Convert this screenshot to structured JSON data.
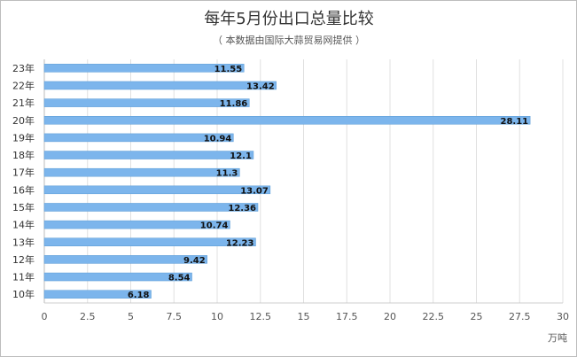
{
  "chart_data": {
    "type": "bar",
    "orientation": "horizontal",
    "title": "每年5月份出口总量比较",
    "subtitle": "（ 本数据由国际大蒜贸易网提供 ）",
    "unit_label": "万吨",
    "categories": [
      "23年",
      "22年",
      "21年",
      "20年",
      "19年",
      "18年",
      "17年",
      "16年",
      "15年",
      "14年",
      "13年",
      "12年",
      "11年",
      "10年"
    ],
    "values": [
      11.55,
      13.42,
      11.86,
      28.11,
      10.94,
      12.1,
      11.3,
      13.07,
      12.36,
      10.74,
      12.23,
      9.42,
      8.54,
      6.18
    ],
    "data_labels": [
      "11.55",
      "13.42",
      "11.86",
      "28.11",
      "10.94",
      "12.1",
      "11.3",
      "13.07",
      "12.36",
      "10.74",
      "12.23",
      "9.42",
      "8.54",
      "6.18"
    ],
    "xlim": [
      0,
      30
    ],
    "x_ticks": [
      0,
      2.5,
      5,
      7.5,
      10,
      12.5,
      15,
      17.5,
      20,
      22.5,
      25,
      27.5,
      30
    ],
    "x_tick_labels": [
      "0",
      "2.5",
      "5",
      "7.5",
      "10",
      "12.5",
      "15",
      "17.5",
      "20",
      "22.5",
      "25",
      "27.5",
      "30"
    ],
    "grid": true,
    "bar_color": "#7cb5ec",
    "bar_edge_color": "#5a9bd5"
  }
}
